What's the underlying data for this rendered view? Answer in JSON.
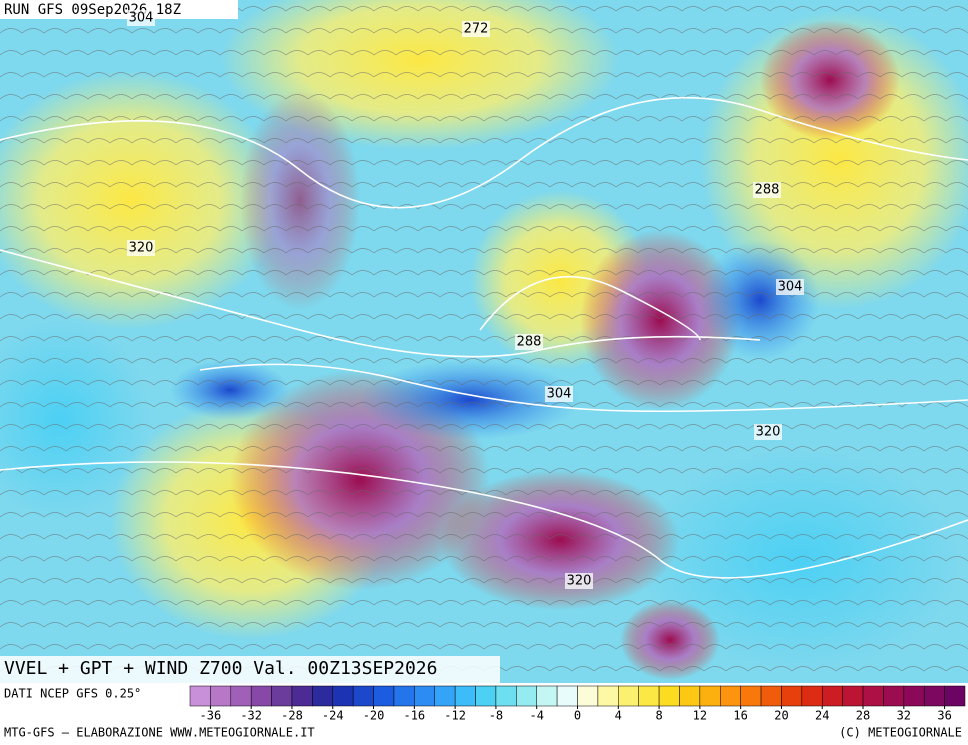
{
  "header": {
    "run": "RUN GFS 09Sep2026 18Z"
  },
  "contour_labels": [
    "304",
    "272",
    "320",
    "288",
    "304",
    "288",
    "304",
    "320",
    "320"
  ],
  "map_title": "VVEL + GPT + WIND Z700 Val. 00Z13SEP2026",
  "legend": {
    "source": "DATI NCEP GFS 0.25°",
    "colorbar": {
      "clim": [
        -38,
        38
      ],
      "ticks": [
        -36,
        -32,
        -28,
        -24,
        -20,
        -16,
        -12,
        -8,
        -4,
        0,
        4,
        8,
        12,
        16,
        20,
        24,
        28,
        32,
        36
      ],
      "colors": [
        "#c890d8",
        "#b878c8",
        "#a060b8",
        "#8848a8",
        "#6c3c9c",
        "#4c2c94",
        "#2c2a9c",
        "#1c34b4",
        "#1c48cc",
        "#1c5ce0",
        "#2474ec",
        "#2c8cf4",
        "#34a4f8",
        "#3cbcf8",
        "#4cd0f4",
        "#6ce0f0",
        "#94ecf0",
        "#c4f6f4",
        "#e8fcfc",
        "#fcfcd8",
        "#fcf8a4",
        "#fcf070",
        "#fce844",
        "#fcdc20",
        "#fcc814",
        "#fcb010",
        "#fc9410",
        "#f8780c",
        "#f05c0c",
        "#e8400c",
        "#dc2c14",
        "#cc1c24",
        "#bc1434",
        "#ac1044",
        "#9c0c50",
        "#8c0858",
        "#7c0860",
        "#6c0464"
      ]
    },
    "credit": "MTG-GFS — ELABORAZIONE WWW.METEOGIORNALE.IT",
    "copyright": "(C) METEOGIORNALE"
  }
}
